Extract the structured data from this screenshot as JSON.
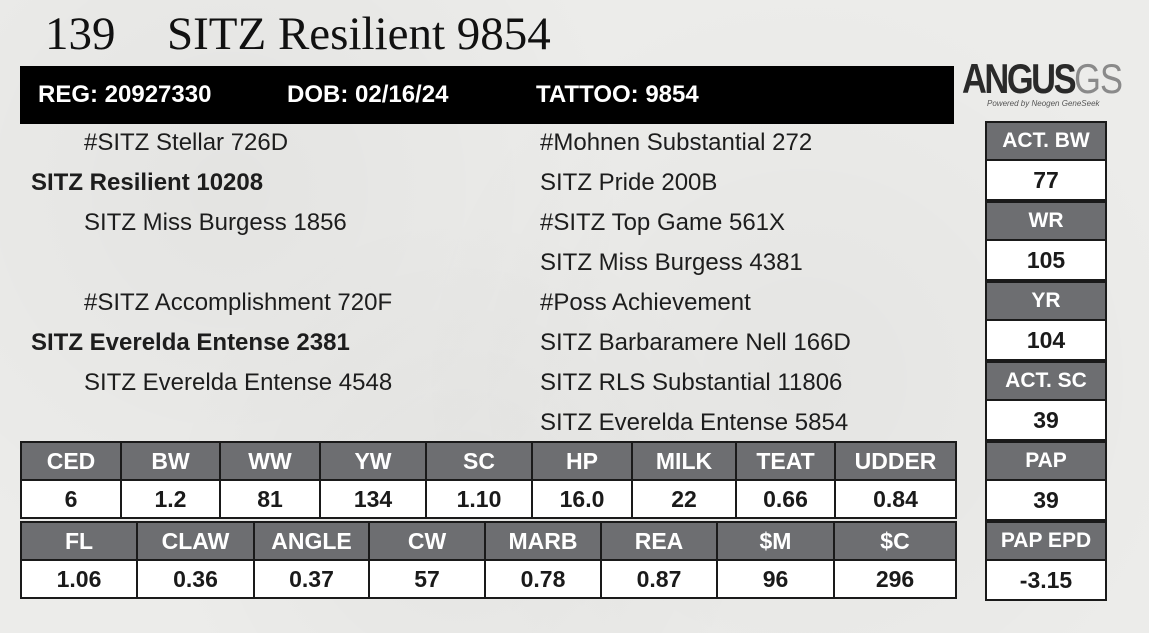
{
  "lot": {
    "number": "139",
    "name": "SITZ Resilient 9854"
  },
  "id_bar": {
    "reg": "REG: 20927330",
    "dob": "DOB: 02/16/24",
    "tattoo": "TATTOO: 9854"
  },
  "logo": {
    "main": "ANGUS",
    "accent": "GS",
    "tagline": "Powered by Neogen GeneSeek"
  },
  "pedigree": {
    "sire_sire": "#SITZ Stellar 726D",
    "sire": "SITZ Resilient 10208",
    "sire_dam": "SITZ Miss Burgess 1856",
    "dam_sire": "#SITZ Accomplishment 720F",
    "dam": "SITZ Everelda Entense 2381",
    "dam_dam": "SITZ Everelda Entense 4548",
    "right": [
      "#Mohnen Substantial 272",
      "SITZ Pride 200B",
      "#SITZ Top Game 561X",
      "SITZ Miss Burgess 4381",
      "#Poss Achievement",
      "SITZ Barbaramere Nell 166D",
      "SITZ RLS Substantial 11806",
      "SITZ Everelda Entense 5854"
    ]
  },
  "side_stats": [
    {
      "label": "ACT. BW",
      "value": "77"
    },
    {
      "label": "WR",
      "value": "105"
    },
    {
      "label": "YR",
      "value": "104"
    },
    {
      "label": "ACT. SC",
      "value": "39"
    },
    {
      "label": "PAP",
      "value": "39"
    },
    {
      "label": "PAP EPD",
      "value": "-3.15"
    }
  ],
  "epd_row1": {
    "headers": [
      "CED",
      "BW",
      "WW",
      "YW",
      "SC",
      "HP",
      "MILK",
      "TEAT",
      "UDDER"
    ],
    "values": [
      "6",
      "1.2",
      "81",
      "134",
      "1.10",
      "16.0",
      "22",
      "0.66",
      "0.84"
    ]
  },
  "epd_row2": {
    "headers": [
      "FL",
      "CLAW",
      "ANGLE",
      "CW",
      "MARB",
      "REA",
      "$M",
      "$C"
    ],
    "values": [
      "1.06",
      "0.36",
      "0.37",
      "57",
      "0.78",
      "0.87",
      "96",
      "296"
    ]
  }
}
